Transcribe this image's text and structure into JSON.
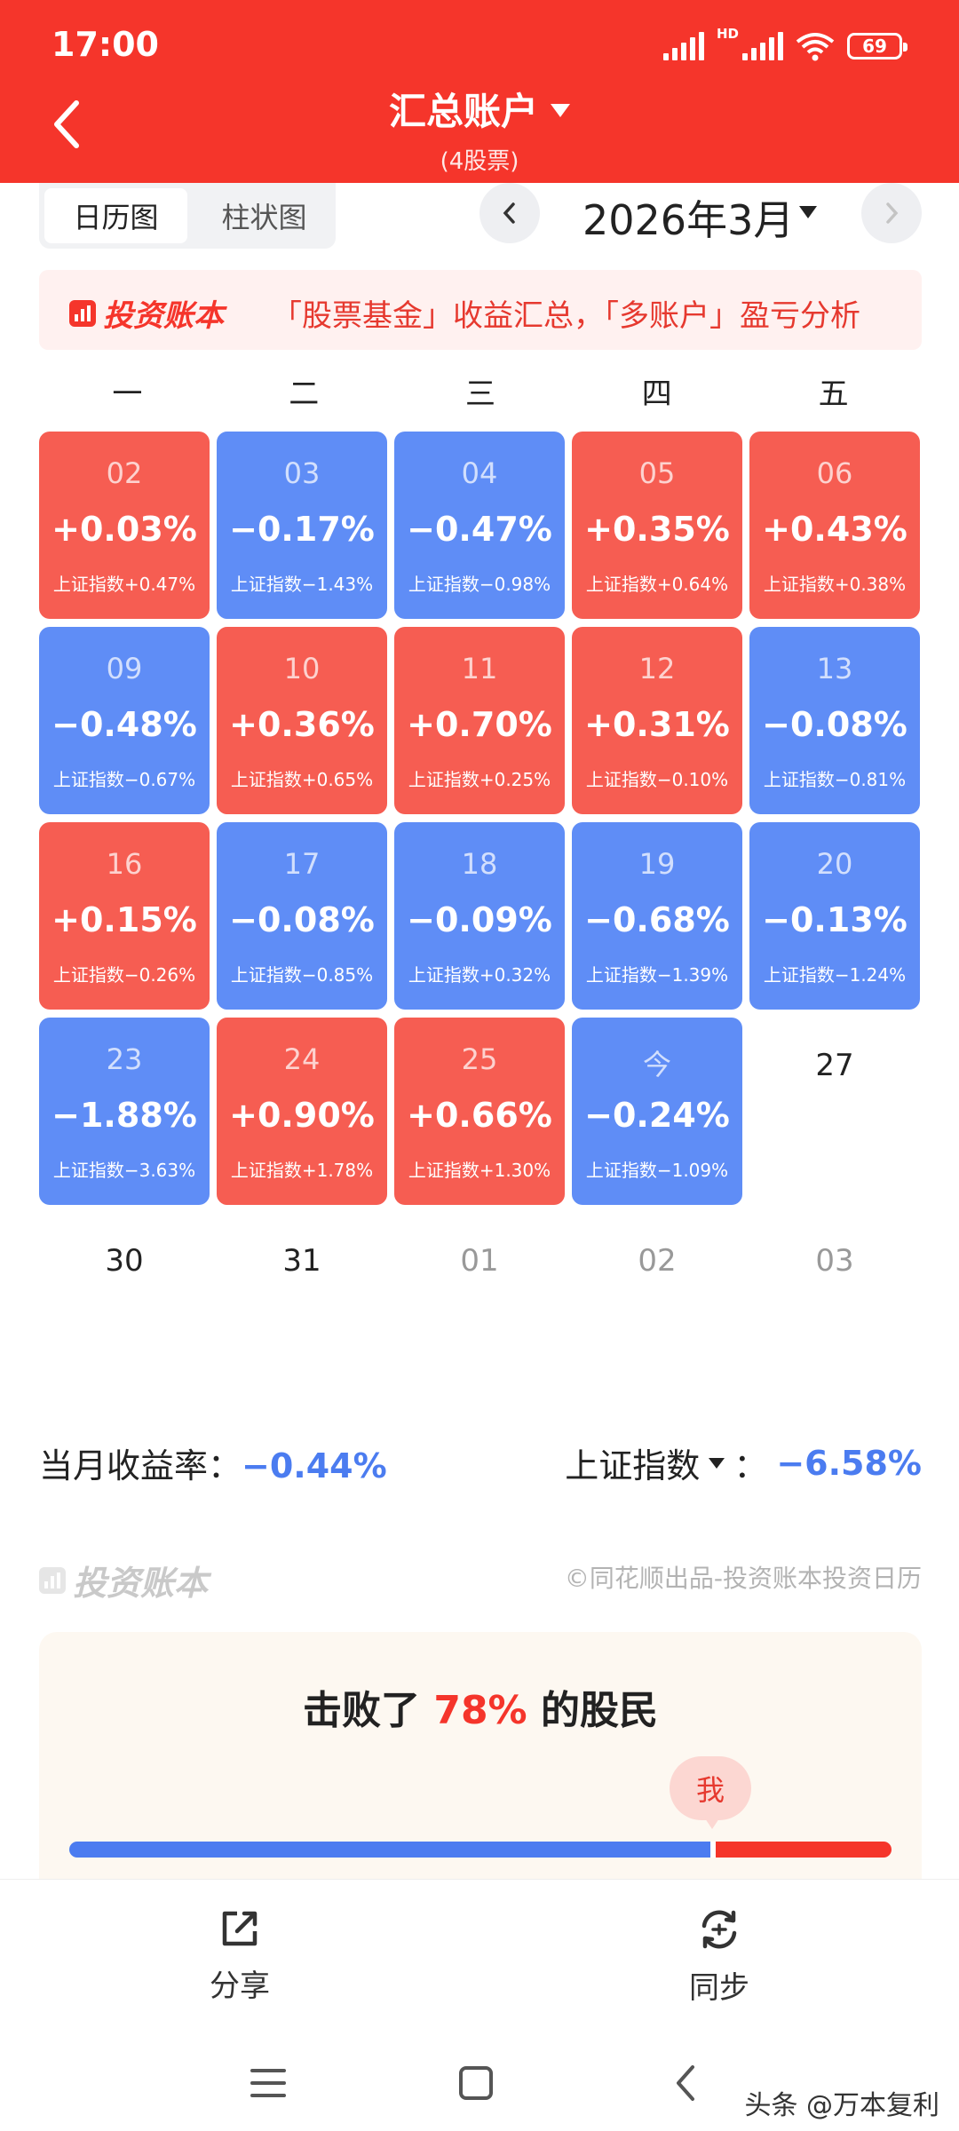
{
  "status_bar": {
    "time": "17:00",
    "hd": "HD",
    "battery": "69"
  },
  "header": {
    "title": "汇总账户",
    "subtitle": "(4股票)"
  },
  "toolbar": {
    "tabs": [
      {
        "label": "日历图",
        "active": true
      },
      {
        "label": "柱状图",
        "active": false
      }
    ],
    "month": "2026年3月"
  },
  "banner": {
    "brand": "投资账本",
    "text": "「股票基金」收益汇总，「多账户」盈亏分析"
  },
  "calendar": {
    "weekdays": [
      "一",
      "二",
      "三",
      "四",
      "五"
    ],
    "days": [
      {
        "day": "02",
        "pct": "+0.03%",
        "index": "上证指数+0.47%",
        "trend": "up"
      },
      {
        "day": "03",
        "pct": "−0.17%",
        "index": "上证指数−1.43%",
        "trend": "down"
      },
      {
        "day": "04",
        "pct": "−0.47%",
        "index": "上证指数−0.98%",
        "trend": "down"
      },
      {
        "day": "05",
        "pct": "+0.35%",
        "index": "上证指数+0.64%",
        "trend": "up"
      },
      {
        "day": "06",
        "pct": "+0.43%",
        "index": "上证指数+0.38%",
        "trend": "up"
      },
      {
        "day": "09",
        "pct": "−0.48%",
        "index": "上证指数−0.67%",
        "trend": "down"
      },
      {
        "day": "10",
        "pct": "+0.36%",
        "index": "上证指数+0.65%",
        "trend": "up"
      },
      {
        "day": "11",
        "pct": "+0.70%",
        "index": "上证指数+0.25%",
        "trend": "up"
      },
      {
        "day": "12",
        "pct": "+0.31%",
        "index": "上证指数−0.10%",
        "trend": "up"
      },
      {
        "day": "13",
        "pct": "−0.08%",
        "index": "上证指数−0.81%",
        "trend": "down"
      },
      {
        "day": "16",
        "pct": "+0.15%",
        "index": "上证指数−0.26%",
        "trend": "up"
      },
      {
        "day": "17",
        "pct": "−0.08%",
        "index": "上证指数−0.85%",
        "trend": "down"
      },
      {
        "day": "18",
        "pct": "−0.09%",
        "index": "上证指数+0.32%",
        "trend": "down"
      },
      {
        "day": "19",
        "pct": "−0.68%",
        "index": "上证指数−1.39%",
        "trend": "down"
      },
      {
        "day": "20",
        "pct": "−0.13%",
        "index": "上证指数−1.24%",
        "trend": "down"
      },
      {
        "day": "23",
        "pct": "−1.88%",
        "index": "上证指数−3.63%",
        "trend": "down"
      },
      {
        "day": "24",
        "pct": "+0.90%",
        "index": "上证指数+1.78%",
        "trend": "up"
      },
      {
        "day": "25",
        "pct": "+0.66%",
        "index": "上证指数+1.30%",
        "trend": "up"
      },
      {
        "day": "今",
        "pct": "−0.24%",
        "index": "上证指数−1.09%",
        "trend": "down"
      }
    ],
    "plain_days": [
      {
        "day": "27",
        "current_month": true
      },
      {
        "day": "30",
        "current_month": true
      },
      {
        "day": "31",
        "current_month": true
      },
      {
        "day": "01",
        "current_month": false
      },
      {
        "day": "02",
        "current_month": false
      },
      {
        "day": "03",
        "current_month": false
      }
    ]
  },
  "summary": {
    "month_label": "当月收益率：",
    "month_value": "−0.44%",
    "index_label": "上证指数",
    "index_sep": "：",
    "index_value": "−6.58%"
  },
  "footer_brand": {
    "brand": "投资账本",
    "credit": "©同花顺出品-投资账本投资日历"
  },
  "rank": {
    "prefix": "击败了",
    "percent": "78%",
    "suffix": "的股民",
    "me_label": "我",
    "beat_fraction": 0.78
  },
  "actions": {
    "share_label": "分享",
    "sync_label": "同步"
  },
  "watermark": "头条 @万本复利",
  "colors": {
    "header": "#f5352b",
    "up": "#f65d52",
    "down": "#5f8df6",
    "negative_text": "#4b7cf0"
  }
}
